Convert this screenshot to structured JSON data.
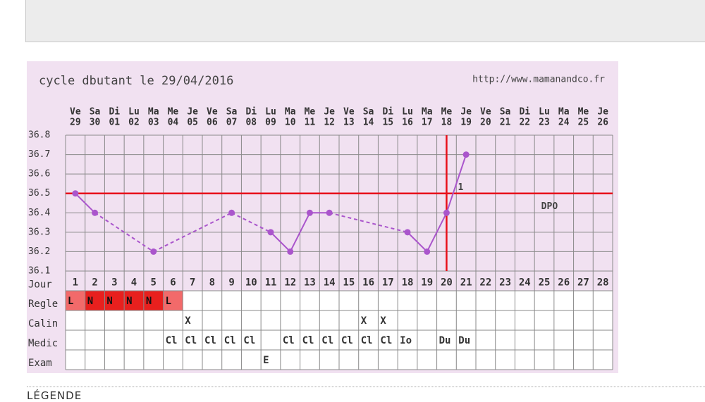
{
  "chart_data": {
    "type": "line",
    "title": "cycle dbutant le 29/04/2016",
    "url": "http://www.mamanandco.fr",
    "x": [
      1,
      2,
      3,
      4,
      5,
      6,
      7,
      8,
      9,
      10,
      11,
      12,
      13,
      14,
      15,
      16,
      17,
      18,
      19,
      20,
      21,
      22,
      23,
      24,
      25,
      26,
      27,
      28
    ],
    "weekdays": [
      "Ve",
      "Sa",
      "Di",
      "Lu",
      "Ma",
      "Me",
      "Je",
      "Ve",
      "Sa",
      "Di",
      "Lu",
      "Ma",
      "Me",
      "Je",
      "Ve",
      "Sa",
      "Di",
      "Lu",
      "Ma",
      "Me",
      "Je",
      "Ve",
      "Sa",
      "Di",
      "Lu",
      "Ma",
      "Me",
      "Je"
    ],
    "dates": [
      "29",
      "30",
      "01",
      "02",
      "03",
      "04",
      "05",
      "06",
      "07",
      "08",
      "09",
      "10",
      "11",
      "12",
      "13",
      "14",
      "15",
      "16",
      "17",
      "18",
      "19",
      "20",
      "21",
      "22",
      "23",
      "24",
      "25",
      "26"
    ],
    "series": [
      {
        "color": "#aa55cc",
        "values": [
          36.5,
          36.4,
          null,
          null,
          36.2,
          null,
          null,
          null,
          36.4,
          null,
          36.3,
          36.2,
          36.4,
          36.4,
          null,
          null,
          null,
          36.3,
          36.2,
          36.4,
          36.7,
          null,
          null,
          null,
          null,
          null,
          null,
          null
        ]
      }
    ],
    "ylim": [
      36.1,
      36.8
    ],
    "yticks": [
      36.1,
      36.2,
      36.3,
      36.4,
      36.5,
      36.6,
      36.7,
      36.8
    ],
    "grid": true,
    "coverline": {
      "value": 36.5,
      "day": 20,
      "color": "#e8101a"
    },
    "annotations": [
      "1",
      "DPO"
    ],
    "rows": [
      {
        "label": "Jour"
      },
      {
        "label": "Regle",
        "cells": [
          "L",
          "N",
          "N",
          "N",
          "N",
          "L",
          null,
          null,
          null,
          null,
          null,
          null,
          null,
          null,
          null,
          null,
          null,
          null,
          null,
          null,
          null,
          null,
          null,
          null,
          null,
          null,
          null,
          null
        ],
        "highlight": {
          "L": "#f26a6a",
          "N": "#e8201e"
        }
      },
      {
        "label": "Calin",
        "cells": [
          null,
          null,
          null,
          null,
          null,
          null,
          "X",
          null,
          null,
          null,
          null,
          null,
          null,
          null,
          null,
          "X",
          "X",
          null,
          null,
          null,
          null,
          null,
          null,
          null,
          null,
          null,
          null,
          null
        ]
      },
      {
        "label": "Medic",
        "cells": [
          null,
          null,
          null,
          null,
          null,
          "Cl",
          "Cl",
          "Cl",
          "Cl",
          "Cl",
          null,
          "Cl",
          "Cl",
          "Cl",
          "Cl",
          "Cl",
          "Cl",
          "Io",
          null,
          "Du",
          "Du",
          null,
          null,
          null,
          null,
          null,
          null,
          null
        ]
      },
      {
        "label": "Exam",
        "cells": [
          null,
          null,
          null,
          null,
          null,
          null,
          null,
          null,
          null,
          null,
          "E",
          null,
          null,
          null,
          null,
          null,
          null,
          null,
          null,
          null,
          null,
          null,
          null,
          null,
          null,
          null,
          null,
          null
        ]
      }
    ]
  },
  "footer": "LÉGENDE"
}
